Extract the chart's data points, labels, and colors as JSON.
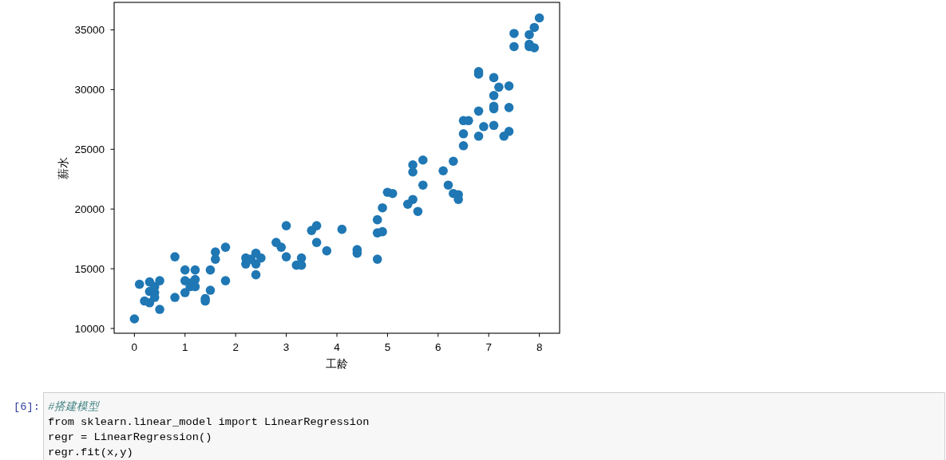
{
  "chart_data": {
    "type": "scatter",
    "xlabel": "工龄",
    "ylabel": "薪水",
    "color": "#1f77b4",
    "marker": "circle",
    "xlim": [
      -0.4,
      8.4
    ],
    "ylim": [
      9600,
      37300
    ],
    "xticks": [
      0,
      1,
      2,
      3,
      4,
      5,
      6,
      7,
      8
    ],
    "yticks": [
      10000,
      15000,
      20000,
      25000,
      30000,
      35000
    ],
    "x": [
      0.0,
      0.1,
      0.2,
      0.3,
      0.3,
      0.3,
      0.4,
      0.4,
      0.4,
      0.5,
      0.5,
      0.8,
      0.8,
      1.0,
      1.0,
      1.0,
      1.1,
      1.1,
      1.2,
      1.2,
      1.2,
      1.4,
      1.4,
      1.5,
      1.5,
      1.6,
      1.6,
      1.8,
      1.8,
      2.2,
      2.2,
      2.3,
      2.4,
      2.4,
      2.4,
      2.5,
      2.8,
      2.9,
      3.0,
      3.0,
      3.2,
      3.3,
      3.3,
      3.5,
      3.6,
      3.6,
      3.8,
      4.1,
      4.4,
      4.4,
      4.8,
      4.8,
      4.8,
      4.9,
      4.9,
      5.0,
      5.1,
      5.4,
      5.5,
      5.5,
      5.5,
      5.6,
      5.7,
      5.7,
      6.1,
      6.2,
      6.3,
      6.3,
      6.4,
      6.4,
      6.5,
      6.5,
      6.5,
      6.6,
      6.8,
      6.8,
      6.8,
      6.8,
      6.9,
      7.1,
      7.1,
      7.1,
      7.1,
      7.1,
      7.2,
      7.3,
      7.4,
      7.4,
      7.4,
      7.5,
      7.5,
      7.8,
      7.8,
      7.8,
      7.9,
      7.9,
      8.0
    ],
    "values": [
      10800,
      13700,
      12300,
      13900,
      13100,
      12150,
      13500,
      13000,
      12600,
      14000,
      11600,
      16000,
      12600,
      14900,
      14000,
      13000,
      13800,
      13500,
      14900,
      14100,
      13500,
      12500,
      12300,
      14900,
      13200,
      16400,
      15800,
      16800,
      14000,
      15900,
      15400,
      15800,
      16300,
      15400,
      14500,
      15900,
      17200,
      16800,
      18600,
      16000,
      15300,
      15900,
      15300,
      18200,
      18600,
      17200,
      16500,
      18300,
      16600,
      16300,
      15800,
      18000,
      19100,
      18100,
      20100,
      21400,
      21300,
      20400,
      20800,
      23100,
      23700,
      19800,
      22000,
      24100,
      23200,
      22000,
      24000,
      21300,
      21200,
      20800,
      25300,
      26300,
      27400,
      27400,
      26100,
      28200,
      31300,
      31500,
      26900,
      27000,
      28400,
      28600,
      29500,
      31000,
      30200,
      26100,
      26500,
      28500,
      30300,
      33600,
      34700,
      34600,
      33600,
      33800,
      33500,
      35200,
      36000
    ],
    "annotations": [
      "[6]:",
      "#搭建模型",
      "from sklearn.linear_model import LinearRegression",
      "regr = LinearRegression()",
      "regr.fit(x,y)"
    ]
  }
}
